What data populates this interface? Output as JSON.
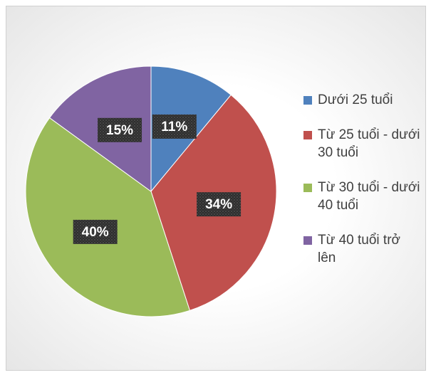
{
  "chart_data": {
    "type": "pie",
    "categories": [
      "Dưới 25 tuổi",
      "Từ 25 tuổi - dưới 30 tuổi",
      "Từ 30 tuổi - dưới 40 tuổi",
      "Từ 40 tuổi trở lên"
    ],
    "values": [
      11,
      34,
      40,
      15
    ],
    "value_labels": [
      "11%",
      "34%",
      "40%",
      "15%"
    ],
    "colors": [
      "#4f81bd",
      "#c0504d",
      "#9bbb59",
      "#8064a2"
    ],
    "legend": "right"
  }
}
